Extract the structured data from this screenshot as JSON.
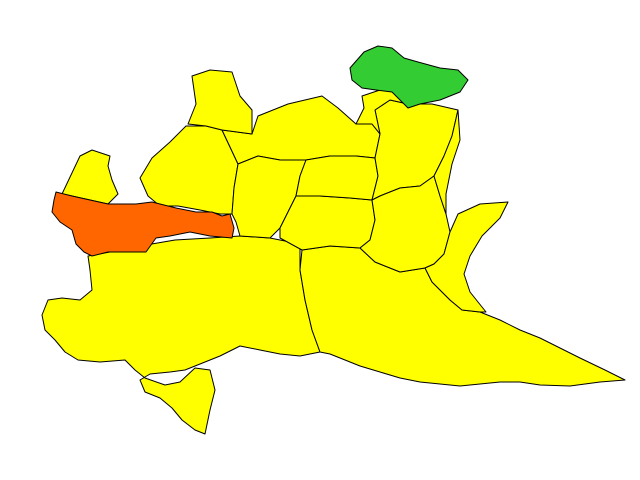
{
  "map": {
    "colors": {
      "yellow": "#ffff00",
      "orange": "#ff6600",
      "green": "#33cc33",
      "border": "#000000"
    },
    "regions": [
      {
        "id": "south-west",
        "color": "yellow"
      },
      {
        "id": "south-east",
        "color": "yellow"
      },
      {
        "id": "north-west-tip",
        "color": "yellow"
      },
      {
        "id": "west-upper",
        "color": "yellow"
      },
      {
        "id": "north-central",
        "color": "yellow"
      },
      {
        "id": "north-top",
        "color": "yellow"
      },
      {
        "id": "central",
        "color": "yellow"
      },
      {
        "id": "center-left",
        "color": "yellow"
      },
      {
        "id": "center-mid",
        "color": "yellow"
      },
      {
        "id": "center-right-upper",
        "color": "yellow"
      },
      {
        "id": "center-right-lower",
        "color": "yellow"
      },
      {
        "id": "east-upper",
        "color": "yellow"
      },
      {
        "id": "east-middle",
        "color": "yellow"
      },
      {
        "id": "east-strip",
        "color": "yellow"
      },
      {
        "id": "west-band",
        "color": "orange"
      },
      {
        "id": "north-east-tip",
        "color": "green"
      }
    ]
  }
}
